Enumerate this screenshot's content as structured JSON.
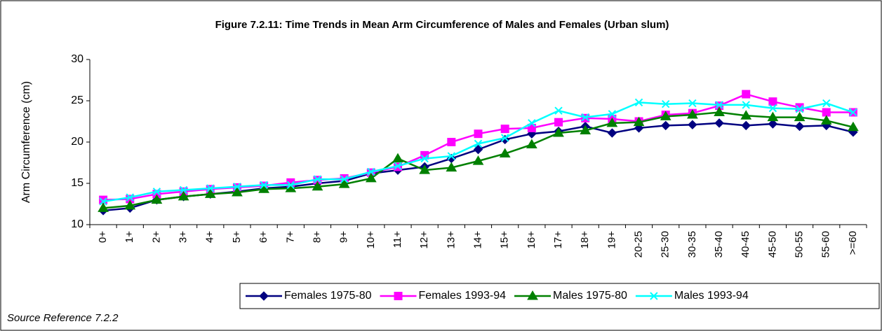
{
  "chart_data": {
    "type": "line",
    "title": "Figure 7.2.11: Time Trends in Mean Arm Circumference of Males and Females (Urban slum)",
    "y_label": "Arm Circumference (cm)",
    "annotation": "Source Reference 7.2.2",
    "categories": [
      "0+",
      "1+",
      "2+",
      "3+",
      "4+",
      "5+",
      "6+",
      "7+",
      "8+",
      "9+",
      "10+",
      "11+",
      "12+",
      "13+",
      "14+",
      "15+",
      "16+",
      "17+",
      "18+",
      "19+",
      "20-25",
      "25-30",
      "30-35",
      "35-40",
      "40-45",
      "45-50",
      "50-55",
      "55-60",
      ">=60"
    ],
    "series": [
      {
        "name": "Females 1975-80",
        "color": "#000080",
        "marker": "diamond",
        "values": [
          11.7,
          12.0,
          13.0,
          13.4,
          13.7,
          14.0,
          14.4,
          14.6,
          15.0,
          15.3,
          16.2,
          16.6,
          17.0,
          18.0,
          19.1,
          20.3,
          21.0,
          21.3,
          21.9,
          21.1,
          21.7,
          22.0,
          22.1,
          22.3,
          22.0,
          22.2,
          21.9,
          22.0,
          21.2
        ]
      },
      {
        "name": "Females 1993-94",
        "color": "#ff00ff",
        "marker": "square",
        "values": [
          13.0,
          13.1,
          13.7,
          14.0,
          14.3,
          14.5,
          14.7,
          15.1,
          15.4,
          15.6,
          16.3,
          17.0,
          18.4,
          20.0,
          21.0,
          21.6,
          21.7,
          22.4,
          22.9,
          22.8,
          22.5,
          23.3,
          23.5,
          24.4,
          25.8,
          24.9,
          24.2,
          23.6,
          23.6
        ]
      },
      {
        "name": "Males 1975-80",
        "color": "#008000",
        "marker": "triangle",
        "values": [
          12.0,
          12.3,
          13.0,
          13.4,
          13.7,
          13.9,
          14.3,
          14.4,
          14.6,
          14.9,
          15.6,
          18.0,
          16.6,
          16.9,
          17.7,
          18.6,
          19.7,
          21.1,
          21.4,
          22.3,
          22.4,
          23.1,
          23.3,
          23.6,
          23.2,
          23.0,
          23.0,
          22.6,
          21.8
        ]
      },
      {
        "name": "Males 1993-94",
        "color": "#00ffff",
        "marker": "x",
        "values": [
          12.8,
          13.3,
          14.0,
          14.2,
          14.4,
          14.6,
          14.8,
          14.8,
          15.5,
          15.5,
          16.4,
          17.1,
          18.0,
          18.3,
          19.8,
          20.5,
          22.3,
          23.8,
          23.0,
          23.4,
          24.8,
          24.6,
          24.7,
          24.5,
          24.5,
          24.1,
          24.0,
          24.7,
          23.6
        ]
      }
    ],
    "ylim": [
      10,
      30
    ],
    "yticks": [
      10,
      15,
      20,
      25,
      30
    ],
    "grid": false,
    "legend": "bottom"
  }
}
